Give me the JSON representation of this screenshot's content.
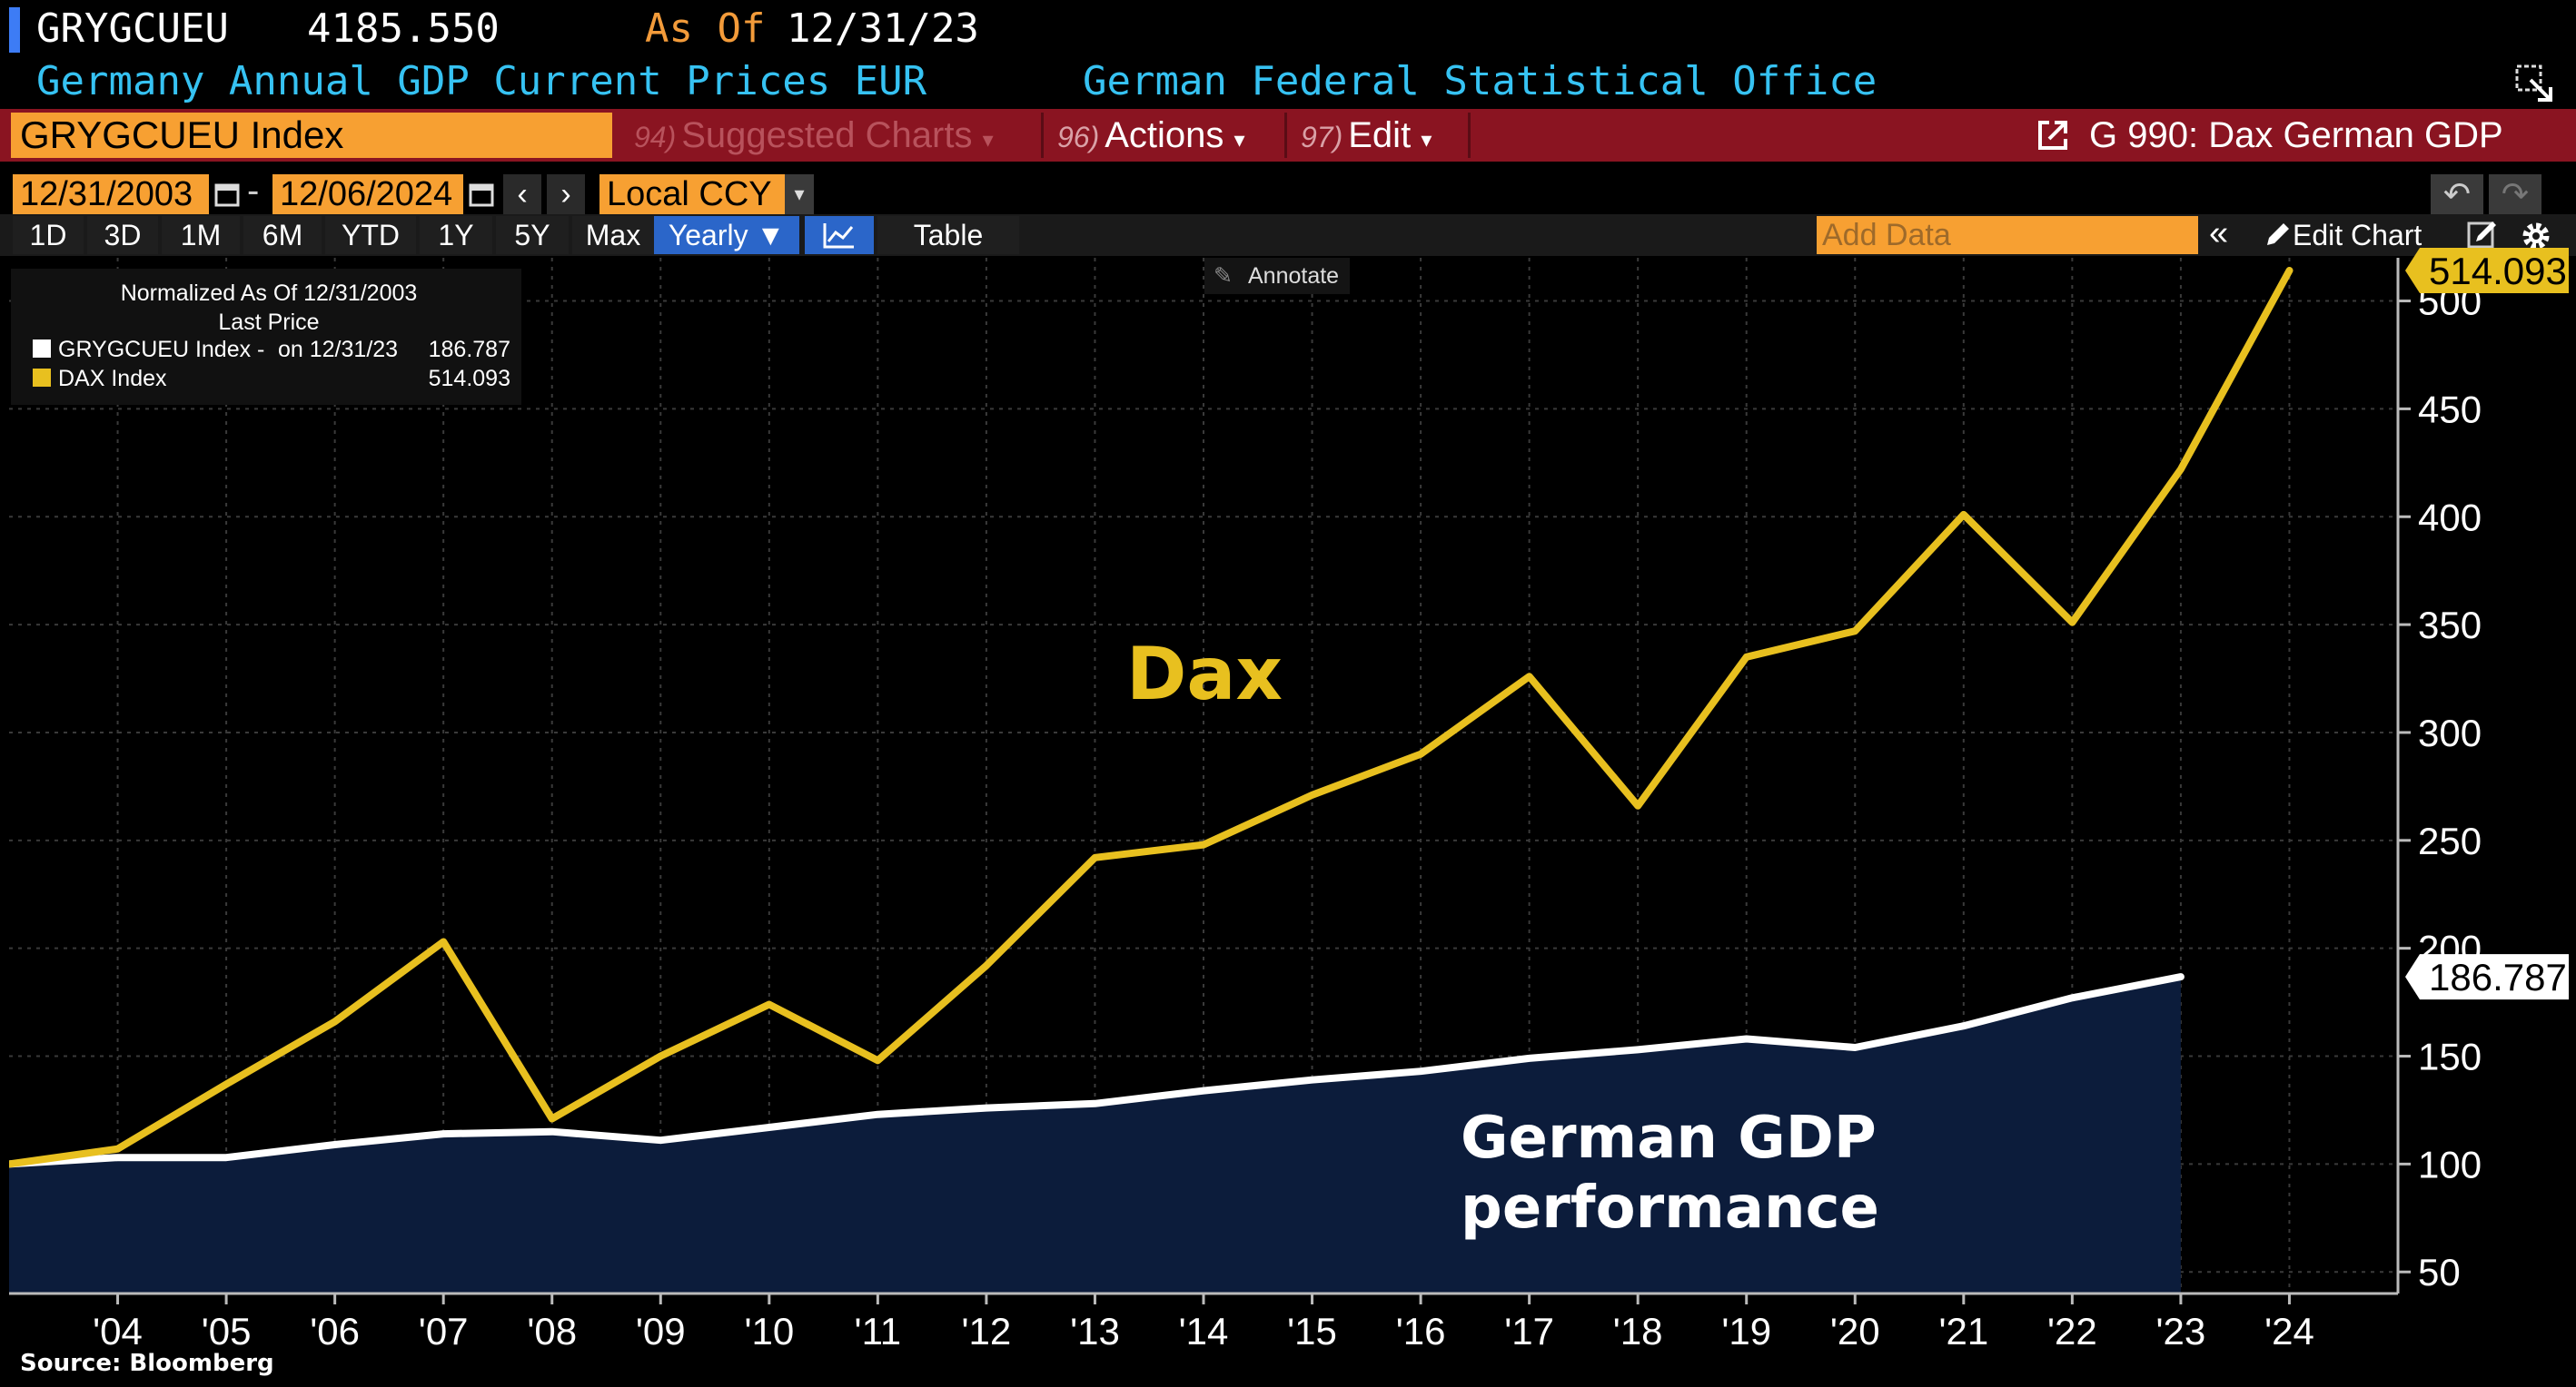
{
  "header": {
    "ticker": "GRYGCUEU",
    "last_value": "4185.550",
    "as_of_label": "As Of",
    "as_of_date": "12/31/23",
    "description": "Germany Annual GDP Current Prices EUR",
    "source_org": "German Federal Statistical Office"
  },
  "toolbar": {
    "security": "GRYGCUEU Index",
    "suggested_num": "94)",
    "suggested_label": "Suggested Charts",
    "actions_num": "96)",
    "actions_label": "Actions",
    "edit_num": "97)",
    "edit_label": "Edit",
    "chart_link": "G 990: Dax German GDP"
  },
  "date_range": {
    "start": "12/31/2003",
    "separator": "-",
    "end": "12/06/2024",
    "currency": "Local CCY"
  },
  "range_buttons": [
    "1D",
    "3D",
    "1M",
    "6M",
    "YTD",
    "1Y",
    "5Y",
    "Max"
  ],
  "period": "Yearly ▼",
  "table_label": "Table",
  "add_data_placeholder": "Add Data",
  "edit_chart_label": "Edit Chart",
  "annotate_label": "Annotate",
  "legend": {
    "title": "Normalized As Of 12/31/2003",
    "subtitle": "Last Price",
    "gdp_label": "GRYGCUEU Index -",
    "gdp_on": "on 12/31/23",
    "gdp_value": "186.787",
    "dax_label": "DAX Index",
    "dax_value": "514.093"
  },
  "footer_source": "Source: Bloomberg",
  "colors": {
    "dax_line": "#e8c01f",
    "gdp_line": "#ffffff",
    "gdp_fill": "#0c1c3b",
    "accent_orange": "#f7a032",
    "toolbar_red": "#8a1421",
    "header_blue": "#36c2f2"
  },
  "chart_data": {
    "type": "line",
    "ylim": [
      40,
      520
    ],
    "yticks": [
      50,
      100,
      150,
      200,
      250,
      300,
      350,
      400,
      450,
      500
    ],
    "xlim": [
      2003.0,
      2025.0
    ],
    "xtick_labels": [
      "'04",
      "'05",
      "'06",
      "'07",
      "'08",
      "'09",
      "'10",
      "'11",
      "'12",
      "'13",
      "'14",
      "'15",
      "'16",
      "'17",
      "'18",
      "'19",
      "'20",
      "'21",
      "'22",
      "'23",
      "'24"
    ],
    "series": [
      {
        "name": "DAX Index",
        "last_value": "514.093",
        "x": [
          2003.0,
          2004.0,
          2005.0,
          2006.0,
          2007.0,
          2008.0,
          2009.0,
          2010.0,
          2011.0,
          2012.0,
          2013.0,
          2014.0,
          2015.0,
          2016.0,
          2017.0,
          2018.0,
          2019.0,
          2020.0,
          2021.0,
          2022.0,
          2023.0,
          2024.0
        ],
        "values": [
          100,
          107,
          137,
          166,
          203,
          121,
          150,
          174,
          148,
          192,
          242,
          248,
          271,
          290,
          326,
          266,
          335,
          347,
          401,
          351,
          422,
          514.093
        ]
      },
      {
        "name": "GRYGCUEU Index",
        "last_value": "186.787",
        "x": [
          2003.0,
          2004.0,
          2005.0,
          2006.0,
          2007.0,
          2008.0,
          2009.0,
          2010.0,
          2011.0,
          2012.0,
          2013.0,
          2014.0,
          2015.0,
          2016.0,
          2017.0,
          2018.0,
          2019.0,
          2020.0,
          2021.0,
          2022.0,
          2023.0
        ],
        "values": [
          100,
          103,
          103,
          109,
          114,
          115,
          111,
          117,
          123,
          126,
          128,
          134,
          139,
          143,
          149,
          153,
          158,
          154,
          164,
          177,
          186.787
        ]
      }
    ],
    "annotations": {
      "dax_label": "Dax",
      "gdp_label_line1": "German GDP",
      "gdp_label_line2": "performance"
    }
  }
}
